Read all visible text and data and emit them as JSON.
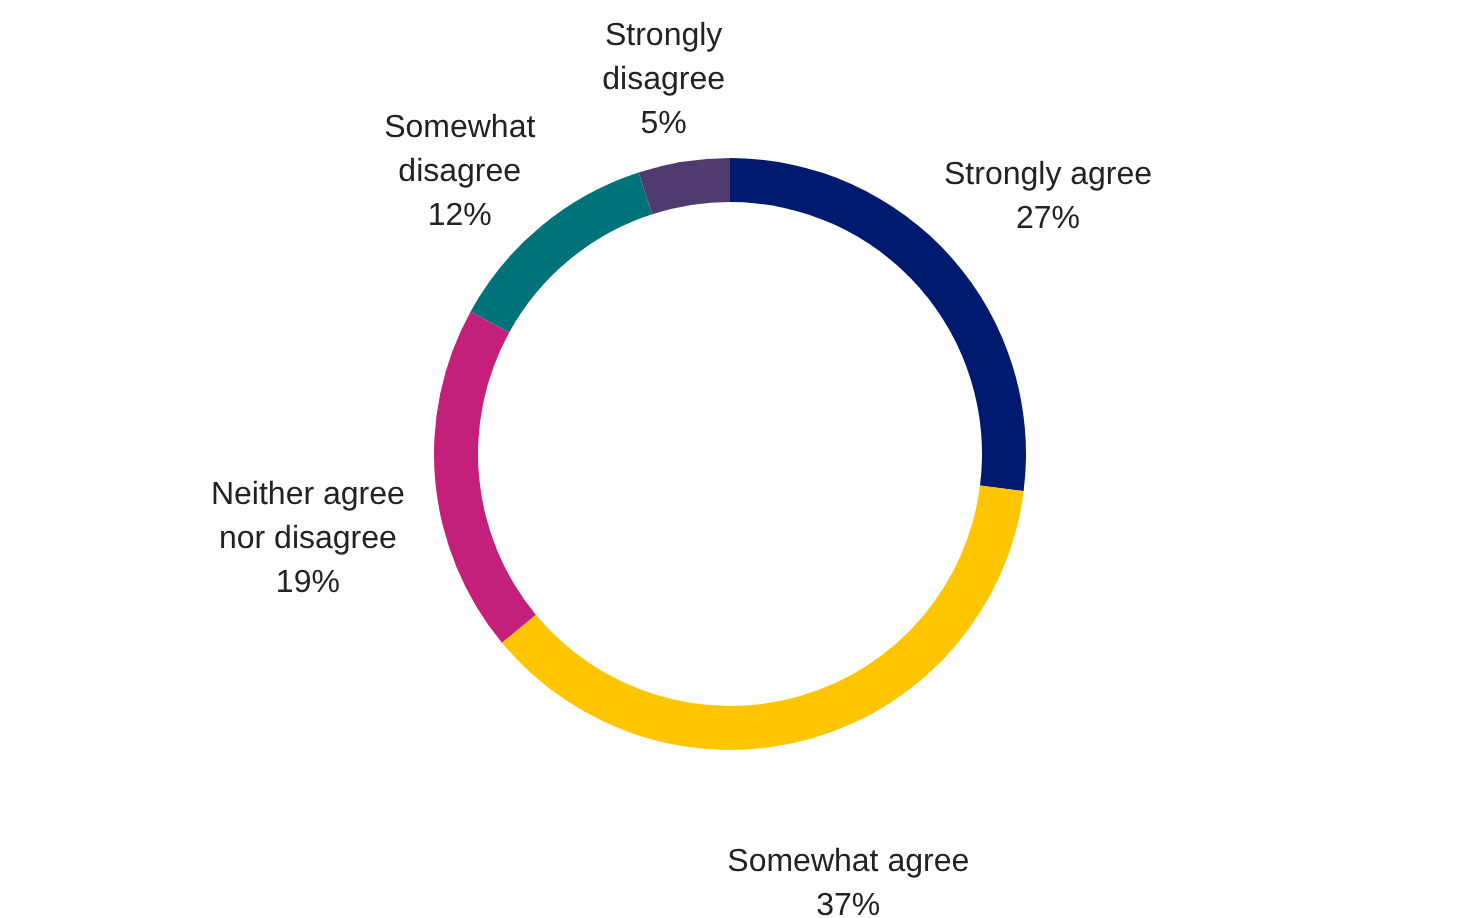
{
  "chart_data": {
    "type": "donut",
    "categories": [
      "Strongly agree",
      "Somewhat agree",
      "Neither agree nor disagree",
      "Somewhat disagree",
      "Strongly disagree"
    ],
    "values": [
      27,
      37,
      19,
      12,
      5
    ],
    "value_labels": [
      "27%",
      "37%",
      "19%",
      "12%",
      "5%"
    ],
    "colors": [
      "#001a70",
      "#ffc600",
      "#c41f7a",
      "#00737a",
      "#4f3b6e"
    ],
    "legend": false
  }
}
